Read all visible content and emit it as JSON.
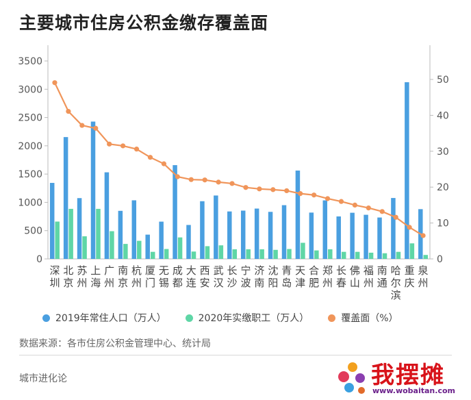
{
  "chart_data": {
    "type": "bar",
    "title": "主要城市住房公积金缴存覆盖面",
    "categories": [
      "深圳",
      "北京",
      "苏州",
      "上海",
      "广州",
      "南京",
      "杭州",
      "厦门",
      "无锡",
      "成都",
      "大连",
      "西安",
      "武汉",
      "长沙",
      "宁波",
      "济南",
      "沈阳",
      "青岛",
      "天津",
      "合肥",
      "郑州",
      "长春",
      "佛山",
      "福州",
      "南通",
      "哈尔滨",
      "重庆",
      "泉州"
    ],
    "series": [
      {
        "name": "2019年常住人口（万人）",
        "axis": "left",
        "color": "#4a9fe0",
        "values": [
          1344,
          2154,
          1075,
          2428,
          1531,
          850,
          1036,
          429,
          659,
          1658,
          600,
          1020,
          1121,
          839,
          854,
          890,
          832,
          950,
          1562,
          819,
          1035,
          751,
          816,
          780,
          732,
          1077,
          3124,
          880
        ]
      },
      {
        "name": "2020年实缴职工（万人）",
        "axis": "left",
        "color": "#5fd6a6",
        "values": [
          660,
          885,
          400,
          885,
          490,
          265,
          320,
          125,
          175,
          380,
          130,
          225,
          240,
          170,
          170,
          170,
          160,
          175,
          285,
          150,
          170,
          125,
          125,
          110,
          100,
          125,
          275,
          70
        ]
      },
      {
        "name": "覆盖面（%）",
        "axis": "right",
        "color": "#f0955a",
        "type": "line",
        "values": [
          49.1,
          41.1,
          37.2,
          36.4,
          32.0,
          31.5,
          30.6,
          28.3,
          26.5,
          22.9,
          22.1,
          22.0,
          21.4,
          21.0,
          19.9,
          19.5,
          19.3,
          19.0,
          18.2,
          17.8,
          16.8,
          16.0,
          15.0,
          14.2,
          13.2,
          11.6,
          8.8,
          6.5
        ]
      }
    ],
    "yleft": {
      "min": 0,
      "max": 3500,
      "ticks": [
        "0",
        "500",
        "1000",
        "1500",
        "2000",
        "2500",
        "3000",
        "3500"
      ]
    },
    "yright": {
      "min": 0,
      "max": 55,
      "ticks": [
        "0",
        "10",
        "20",
        "30",
        "40",
        "50"
      ]
    },
    "grid": false,
    "legend_position": "bottom"
  },
  "page": {
    "title": "主要城市住房公积金缴存覆盖面",
    "legend": [
      "2019年常住人口（万人）",
      "2020年实缴职工（万人）",
      "覆盖面（%）"
    ],
    "source": "数据来源：各市住房公积金管理中心、统计局",
    "brand": "城市进化论",
    "watermark_title": "我摆摊",
    "watermark_url": "www.wobaitan.com"
  }
}
